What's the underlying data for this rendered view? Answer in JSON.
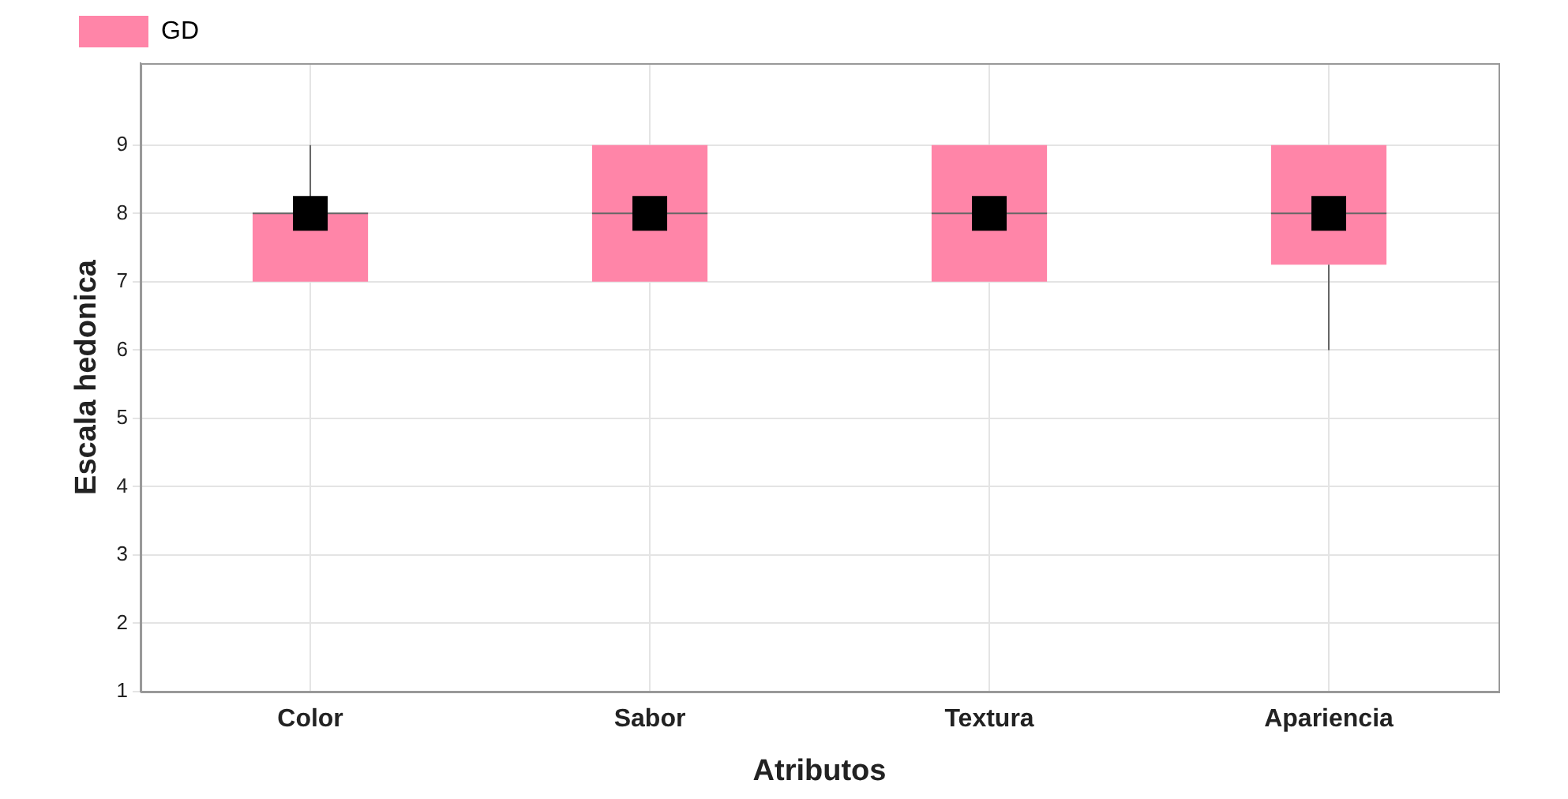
{
  "chart_data": {
    "type": "box",
    "xlabel": "Atributos",
    "ylabel": "Escala hedonica",
    "categories": [
      "Color",
      "Sabor",
      "Textura",
      "Apariencia"
    ],
    "series": [
      {
        "name": "GD",
        "color": "#ff85a8",
        "boxes": [
          {
            "low": 7,
            "q1": 7,
            "median": 8,
            "q3": 8,
            "high": 9,
            "mean": 8
          },
          {
            "low": 7,
            "q1": 7,
            "median": 8,
            "q3": 9,
            "high": 9,
            "mean": 8
          },
          {
            "low": 7,
            "q1": 7,
            "median": 8,
            "q3": 9,
            "high": 9,
            "mean": 8
          },
          {
            "low": 6,
            "q1": 7.25,
            "median": 8,
            "q3": 9,
            "high": 9,
            "mean": 8
          }
        ]
      }
    ],
    "ylim": [
      1,
      10.2
    ],
    "yticks": [
      1,
      2,
      3,
      4,
      5,
      6,
      7,
      8,
      9
    ],
    "grid": true,
    "legend": "top left",
    "marker": "square"
  }
}
